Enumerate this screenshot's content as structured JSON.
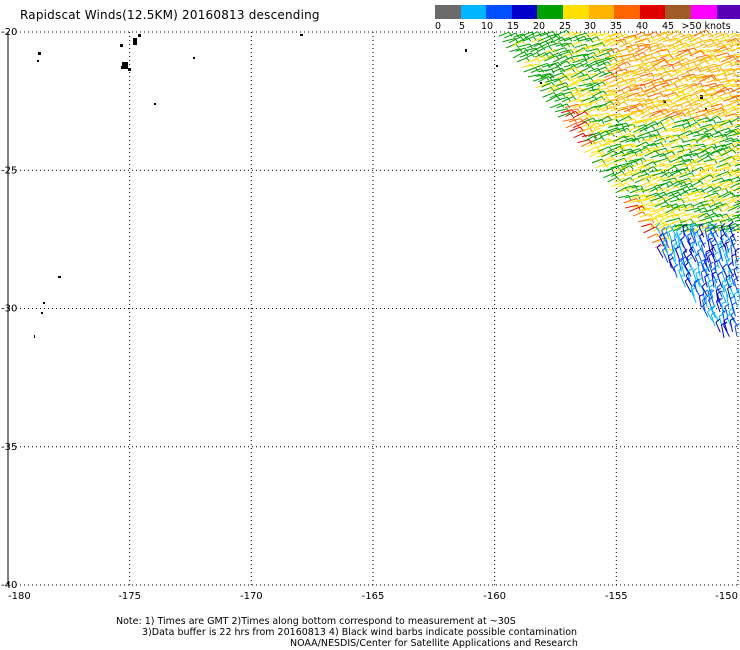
{
  "title": "Rapidscat Winds(12.5KM) 20160813 descending",
  "legend": {
    "colors": [
      "#6b6b6b",
      "#00b4ff",
      "#0050ff",
      "#0000c8",
      "#00a000",
      "#ffe000",
      "#ffb400",
      "#ff6400",
      "#e00000",
      "#a05a28",
      "#ff00ff",
      "#5a00b4"
    ],
    "labels": [
      "0",
      "5",
      "10",
      "15",
      "20",
      "25",
      "30",
      "35",
      "40",
      "45",
      ">50 knots"
    ]
  },
  "map": {
    "lon_range": [
      -180,
      -150
    ],
    "lat_range": [
      -20,
      -40
    ],
    "lon_ticks": [
      "-180",
      "-175",
      "-170",
      "-165",
      "-160",
      "-155",
      "-150"
    ],
    "lat_ticks": [
      "-20",
      "-25",
      "-30",
      "-35",
      "-40"
    ],
    "gridlines": true,
    "grid_style": "dotted"
  },
  "notes": {
    "line1": "Note: 1) Times are GMT 2)Times along bottom correspond to measurement at ~30S",
    "line2": "3)Data buffer is 22 hrs from 20160813 4) Black wind barbs indicate possible contamination",
    "line3": "NOAA/NESDIS/Center for Satellite Applications and Research"
  }
}
